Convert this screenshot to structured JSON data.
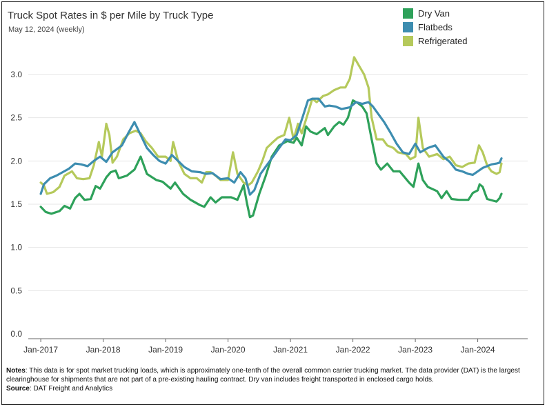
{
  "chart_data": {
    "type": "line",
    "title": "Truck Spot Rates in $ per Mile by Truck Type",
    "subtitle": "May 12, 2024 (weekly)",
    "xlabel": "",
    "ylabel": "",
    "xlim": [
      2016.8,
      2024.8
    ],
    "ylim": [
      0,
      3.3
    ],
    "yticks": [
      0.0,
      0.5,
      1.0,
      1.5,
      2.0,
      2.5,
      3.0
    ],
    "ytick_labels": [
      "0.0",
      "0.5",
      "1.0",
      "1.5",
      "2.0",
      "2.5",
      "3.0"
    ],
    "xticks": [
      2017,
      2018,
      2019,
      2020,
      2021,
      2022,
      2023,
      2024
    ],
    "xtick_labels": [
      "Jan-2017",
      "Jan-2018",
      "Jan-2019",
      "Jan-2020",
      "Jan-2021",
      "Jan-2022",
      "Jan-2023",
      "Jan-2024"
    ],
    "legend_position": "top-right",
    "series": [
      {
        "name": "Dry Van",
        "color": "#2ea15a",
        "points": [
          [
            2017.0,
            1.47
          ],
          [
            2017.08,
            1.41
          ],
          [
            2017.17,
            1.39
          ],
          [
            2017.3,
            1.42
          ],
          [
            2017.38,
            1.48
          ],
          [
            2017.47,
            1.45
          ],
          [
            2017.55,
            1.57
          ],
          [
            2017.62,
            1.62
          ],
          [
            2017.7,
            1.55
          ],
          [
            2017.8,
            1.56
          ],
          [
            2017.88,
            1.71
          ],
          [
            2017.95,
            1.68
          ],
          [
            2018.05,
            1.81
          ],
          [
            2018.12,
            1.87
          ],
          [
            2018.2,
            1.89
          ],
          [
            2018.25,
            1.8
          ],
          [
            2018.38,
            1.83
          ],
          [
            2018.5,
            1.9
          ],
          [
            2018.6,
            2.05
          ],
          [
            2018.7,
            1.85
          ],
          [
            2018.85,
            1.78
          ],
          [
            2018.95,
            1.76
          ],
          [
            2019.08,
            1.68
          ],
          [
            2019.15,
            1.75
          ],
          [
            2019.28,
            1.62
          ],
          [
            2019.4,
            1.55
          ],
          [
            2019.55,
            1.49
          ],
          [
            2019.62,
            1.47
          ],
          [
            2019.72,
            1.58
          ],
          [
            2019.8,
            1.52
          ],
          [
            2019.9,
            1.58
          ],
          [
            2020.05,
            1.58
          ],
          [
            2020.15,
            1.55
          ],
          [
            2020.25,
            1.72
          ],
          [
            2020.3,
            1.52
          ],
          [
            2020.35,
            1.35
          ],
          [
            2020.4,
            1.37
          ],
          [
            2020.5,
            1.62
          ],
          [
            2020.6,
            1.82
          ],
          [
            2020.7,
            2.05
          ],
          [
            2020.82,
            2.18
          ],
          [
            2020.95,
            2.23
          ],
          [
            2021.05,
            2.21
          ],
          [
            2021.1,
            2.27
          ],
          [
            2021.18,
            2.18
          ],
          [
            2021.25,
            2.4
          ],
          [
            2021.32,
            2.34
          ],
          [
            2021.42,
            2.31
          ],
          [
            2021.55,
            2.38
          ],
          [
            2021.6,
            2.3
          ],
          [
            2021.7,
            2.4
          ],
          [
            2021.78,
            2.45
          ],
          [
            2021.85,
            2.42
          ],
          [
            2021.92,
            2.5
          ],
          [
            2022.0,
            2.7
          ],
          [
            2022.08,
            2.67
          ],
          [
            2022.15,
            2.63
          ],
          [
            2022.22,
            2.55
          ],
          [
            2022.3,
            2.25
          ],
          [
            2022.38,
            1.97
          ],
          [
            2022.45,
            1.9
          ],
          [
            2022.55,
            1.97
          ],
          [
            2022.65,
            1.88
          ],
          [
            2022.75,
            1.88
          ],
          [
            2022.9,
            1.75
          ],
          [
            2022.97,
            1.7
          ],
          [
            2023.05,
            1.97
          ],
          [
            2023.12,
            1.78
          ],
          [
            2023.2,
            1.7
          ],
          [
            2023.35,
            1.65
          ],
          [
            2023.42,
            1.57
          ],
          [
            2023.5,
            1.65
          ],
          [
            2023.58,
            1.56
          ],
          [
            2023.7,
            1.55
          ],
          [
            2023.85,
            1.55
          ],
          [
            2023.92,
            1.63
          ],
          [
            2024.0,
            1.66
          ],
          [
            2024.03,
            1.73
          ],
          [
            2024.08,
            1.7
          ],
          [
            2024.15,
            1.56
          ],
          [
            2024.25,
            1.54
          ],
          [
            2024.3,
            1.53
          ],
          [
            2024.35,
            1.57
          ],
          [
            2024.38,
            1.62
          ]
        ]
      },
      {
        "name": "Flatbeds",
        "color": "#3d8db0",
        "points": [
          [
            2017.0,
            1.62
          ],
          [
            2017.05,
            1.73
          ],
          [
            2017.15,
            1.8
          ],
          [
            2017.25,
            1.83
          ],
          [
            2017.35,
            1.87
          ],
          [
            2017.45,
            1.91
          ],
          [
            2017.55,
            1.97
          ],
          [
            2017.65,
            1.96
          ],
          [
            2017.75,
            1.94
          ],
          [
            2017.85,
            2.0
          ],
          [
            2017.95,
            2.05
          ],
          [
            2018.05,
            1.99
          ],
          [
            2018.15,
            2.1
          ],
          [
            2018.3,
            2.18
          ],
          [
            2018.4,
            2.32
          ],
          [
            2018.5,
            2.45
          ],
          [
            2018.6,
            2.3
          ],
          [
            2018.7,
            2.15
          ],
          [
            2018.8,
            2.07
          ],
          [
            2018.9,
            2.0
          ],
          [
            2019.0,
            1.97
          ],
          [
            2019.1,
            2.07
          ],
          [
            2019.2,
            2.0
          ],
          [
            2019.3,
            1.93
          ],
          [
            2019.42,
            1.88
          ],
          [
            2019.55,
            1.87
          ],
          [
            2019.65,
            1.85
          ],
          [
            2019.75,
            1.86
          ],
          [
            2019.88,
            1.79
          ],
          [
            2020.0,
            1.8
          ],
          [
            2020.1,
            1.75
          ],
          [
            2020.2,
            1.87
          ],
          [
            2020.28,
            1.8
          ],
          [
            2020.35,
            1.61
          ],
          [
            2020.42,
            1.66
          ],
          [
            2020.52,
            1.85
          ],
          [
            2020.62,
            1.95
          ],
          [
            2020.72,
            2.05
          ],
          [
            2020.82,
            2.15
          ],
          [
            2020.92,
            2.25
          ],
          [
            2021.0,
            2.24
          ],
          [
            2021.1,
            2.3
          ],
          [
            2021.2,
            2.52
          ],
          [
            2021.28,
            2.7
          ],
          [
            2021.35,
            2.72
          ],
          [
            2021.45,
            2.72
          ],
          [
            2021.55,
            2.63
          ],
          [
            2021.62,
            2.64
          ],
          [
            2021.72,
            2.63
          ],
          [
            2021.82,
            2.6
          ],
          [
            2021.95,
            2.62
          ],
          [
            2022.05,
            2.68
          ],
          [
            2022.15,
            2.66
          ],
          [
            2022.25,
            2.68
          ],
          [
            2022.32,
            2.63
          ],
          [
            2022.4,
            2.55
          ],
          [
            2022.5,
            2.45
          ],
          [
            2022.6,
            2.33
          ],
          [
            2022.7,
            2.2
          ],
          [
            2022.8,
            2.1
          ],
          [
            2022.9,
            2.08
          ],
          [
            2023.0,
            2.2
          ],
          [
            2023.08,
            2.1
          ],
          [
            2023.2,
            2.15
          ],
          [
            2023.32,
            2.18
          ],
          [
            2023.45,
            2.05
          ],
          [
            2023.55,
            1.99
          ],
          [
            2023.65,
            1.9
          ],
          [
            2023.75,
            1.88
          ],
          [
            2023.85,
            1.85
          ],
          [
            2023.92,
            1.84
          ],
          [
            2024.0,
            1.88
          ],
          [
            2024.08,
            1.92
          ],
          [
            2024.15,
            1.94
          ],
          [
            2024.22,
            1.96
          ],
          [
            2024.3,
            1.97
          ],
          [
            2024.35,
            1.98
          ],
          [
            2024.38,
            2.03
          ]
        ]
      },
      {
        "name": "Refrigerated",
        "color": "#b5c95b",
        "points": [
          [
            2017.0,
            1.75
          ],
          [
            2017.05,
            1.72
          ],
          [
            2017.1,
            1.62
          ],
          [
            2017.2,
            1.64
          ],
          [
            2017.3,
            1.7
          ],
          [
            2017.38,
            1.83
          ],
          [
            2017.5,
            1.88
          ],
          [
            2017.58,
            1.8
          ],
          [
            2017.68,
            1.79
          ],
          [
            2017.78,
            1.8
          ],
          [
            2017.85,
            1.95
          ],
          [
            2017.93,
            2.22
          ],
          [
            2017.98,
            2.05
          ],
          [
            2018.05,
            2.43
          ],
          [
            2018.1,
            2.3
          ],
          [
            2018.15,
            1.98
          ],
          [
            2018.22,
            2.05
          ],
          [
            2018.32,
            2.25
          ],
          [
            2018.42,
            2.32
          ],
          [
            2018.52,
            2.35
          ],
          [
            2018.6,
            2.32
          ],
          [
            2018.68,
            2.23
          ],
          [
            2018.78,
            2.15
          ],
          [
            2018.88,
            2.05
          ],
          [
            2019.0,
            2.05
          ],
          [
            2019.08,
            2.0
          ],
          [
            2019.12,
            2.22
          ],
          [
            2019.2,
            2.0
          ],
          [
            2019.3,
            1.85
          ],
          [
            2019.4,
            1.8
          ],
          [
            2019.5,
            1.8
          ],
          [
            2019.58,
            1.75
          ],
          [
            2019.65,
            1.87
          ],
          [
            2019.72,
            1.87
          ],
          [
            2019.8,
            1.83
          ],
          [
            2019.88,
            1.78
          ],
          [
            2020.0,
            1.78
          ],
          [
            2020.08,
            2.1
          ],
          [
            2020.15,
            1.85
          ],
          [
            2020.25,
            1.75
          ],
          [
            2020.32,
            1.72
          ],
          [
            2020.38,
            1.75
          ],
          [
            2020.48,
            1.88
          ],
          [
            2020.55,
            2.0
          ],
          [
            2020.62,
            2.15
          ],
          [
            2020.72,
            2.22
          ],
          [
            2020.8,
            2.27
          ],
          [
            2020.9,
            2.3
          ],
          [
            2020.98,
            2.5
          ],
          [
            2021.05,
            2.25
          ],
          [
            2021.12,
            2.43
          ],
          [
            2021.18,
            2.32
          ],
          [
            2021.28,
            2.55
          ],
          [
            2021.35,
            2.72
          ],
          [
            2021.42,
            2.68
          ],
          [
            2021.52,
            2.75
          ],
          [
            2021.6,
            2.77
          ],
          [
            2021.7,
            2.82
          ],
          [
            2021.8,
            2.85
          ],
          [
            2021.88,
            2.85
          ],
          [
            2021.95,
            2.95
          ],
          [
            2022.02,
            3.2
          ],
          [
            2022.1,
            3.1
          ],
          [
            2022.18,
            3.0
          ],
          [
            2022.25,
            2.85
          ],
          [
            2022.3,
            2.5
          ],
          [
            2022.38,
            2.25
          ],
          [
            2022.48,
            2.25
          ],
          [
            2022.55,
            2.18
          ],
          [
            2022.65,
            2.15
          ],
          [
            2022.72,
            2.1
          ],
          [
            2022.85,
            2.08
          ],
          [
            2022.92,
            2.02
          ],
          [
            2023.0,
            2.05
          ],
          [
            2023.05,
            2.5
          ],
          [
            2023.12,
            2.15
          ],
          [
            2023.22,
            2.05
          ],
          [
            2023.35,
            2.08
          ],
          [
            2023.45,
            2.02
          ],
          [
            2023.55,
            2.05
          ],
          [
            2023.65,
            1.95
          ],
          [
            2023.75,
            1.93
          ],
          [
            2023.85,
            1.97
          ],
          [
            2023.95,
            1.98
          ],
          [
            2024.02,
            2.18
          ],
          [
            2024.08,
            2.1
          ],
          [
            2024.15,
            1.95
          ],
          [
            2024.22,
            1.88
          ],
          [
            2024.3,
            1.85
          ],
          [
            2024.35,
            1.87
          ],
          [
            2024.38,
            1.97
          ]
        ]
      }
    ]
  },
  "notes": {
    "notes_label": "Notes",
    "notes_text": ": This data is for spot market trucking loads, which is approximately one-tenth of the overall common carrier trucking market. The data provider (DAT) is the largest clearinghouse for shipments that are not part of a pre-existing hauling contract. Dry van includes freight transported in enclosed cargo holds.",
    "source_label": "Source",
    "source_text": ": DAT Freight and Analytics"
  }
}
